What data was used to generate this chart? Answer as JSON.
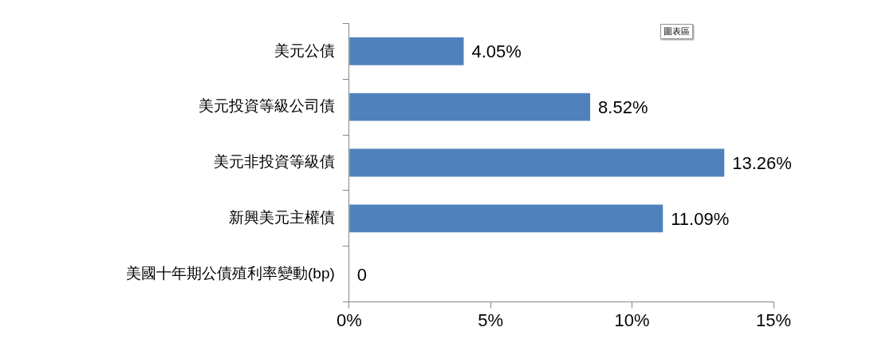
{
  "chart_data": {
    "type": "bar",
    "orientation": "horizontal",
    "categories": [
      "美元公債",
      "美元投資等級公司債",
      "美元非投資等級債",
      "新興美元主權債",
      "美國十年期公債殖利率變動(bp)"
    ],
    "values": [
      4.05,
      8.52,
      13.26,
      11.09,
      0
    ],
    "value_labels": [
      "4.05%",
      "8.52%",
      "13.26%",
      "11.09%",
      "0"
    ],
    "color": "#4f81bd",
    "xlim": [
      0,
      15
    ],
    "xticks": [
      {
        "value": 0,
        "label": "0%"
      },
      {
        "value": 5,
        "label": "5%"
      },
      {
        "value": 10,
        "label": "10%"
      },
      {
        "value": 15,
        "label": "15%"
      }
    ],
    "grid": false,
    "legend": false,
    "annotations": [
      "圖表區"
    ]
  }
}
